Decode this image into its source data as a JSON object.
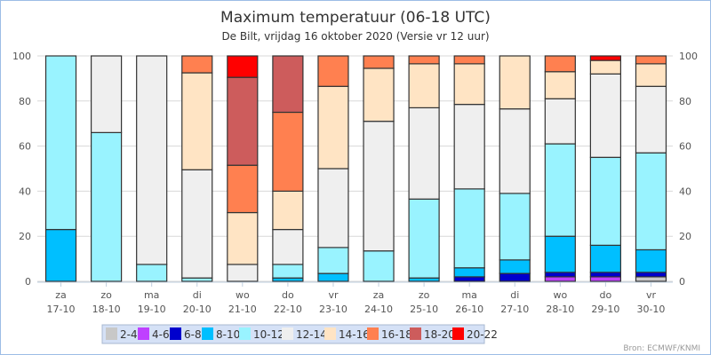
{
  "chart_data": {
    "type": "bar",
    "stacked": true,
    "title": "Maximum temperatuur (06-18 UTC)",
    "subtitle": "De Bilt, vrijdag 16 oktober 2020 (Versie vr 12 uur)",
    "source": "Bron: ECMWF/KNMI",
    "ylim": [
      0,
      100
    ],
    "yticks": [
      0,
      20,
      40,
      60,
      80,
      100
    ],
    "grid": true,
    "legend_position": "bottom",
    "categories": [
      [
        "za",
        "17-10"
      ],
      [
        "zo",
        "18-10"
      ],
      [
        "ma",
        "19-10"
      ],
      [
        "di",
        "20-10"
      ],
      [
        "wo",
        "21-10"
      ],
      [
        "do",
        "22-10"
      ],
      [
        "vr",
        "23-10"
      ],
      [
        "za",
        "24-10"
      ],
      [
        "zo",
        "25-10"
      ],
      [
        "ma",
        "26-10"
      ],
      [
        "di",
        "27-10"
      ],
      [
        "wo",
        "28-10"
      ],
      [
        "do",
        "29-10"
      ],
      [
        "vr",
        "30-10"
      ]
    ],
    "series": [
      {
        "name": "2-4",
        "color": "#c8c8c8",
        "values": [
          0,
          0,
          0,
          0,
          0,
          0,
          0,
          0,
          0,
          0,
          0,
          0,
          0,
          2
        ]
      },
      {
        "name": "4-6",
        "color": "#bf40ff",
        "values": [
          0,
          0,
          0,
          0,
          0,
          0,
          0,
          0,
          0,
          0,
          0,
          2,
          2,
          0
        ]
      },
      {
        "name": "6-8",
        "color": "#0000cd",
        "values": [
          0,
          0,
          0,
          0,
          0,
          0,
          0,
          0,
          0,
          2,
          3.5,
          2,
          2,
          2
        ]
      },
      {
        "name": "8-10",
        "color": "#00bfff",
        "values": [
          23,
          0,
          0,
          0,
          0,
          1.5,
          3.5,
          0,
          1.5,
          4,
          6,
          16,
          12,
          10
        ]
      },
      {
        "name": "10-12",
        "color": "#99f3ff",
        "values": [
          77,
          66,
          7.5,
          1.5,
          0,
          6,
          11.5,
          13.5,
          35,
          35,
          29.5,
          41,
          39,
          43
        ]
      },
      {
        "name": "12-14",
        "color": "#efefef",
        "values": [
          0,
          34,
          92.5,
          48,
          7.5,
          15.5,
          35,
          57.5,
          40.5,
          37.5,
          37.5,
          20,
          37,
          29.5
        ]
      },
      {
        "name": "14-16",
        "color": "#ffe4c4",
        "values": [
          0,
          0,
          0,
          43,
          23,
          17,
          36.5,
          23.5,
          19.5,
          18,
          23.5,
          12,
          6,
          10
        ]
      },
      {
        "name": "16-18",
        "color": "#ff8050",
        "values": [
          0,
          0,
          0,
          7.5,
          21,
          35,
          13.5,
          5.5,
          3.5,
          3.5,
          0,
          7,
          0,
          3.5
        ]
      },
      {
        "name": "18-20",
        "color": "#cd5c5c",
        "values": [
          0,
          0,
          0,
          0,
          39,
          25,
          0,
          0,
          0,
          0,
          0,
          0,
          0,
          0
        ]
      },
      {
        "name": "20-22",
        "color": "#ff0000",
        "values": [
          0,
          0,
          0,
          0,
          9.5,
          0,
          0,
          0,
          0,
          0,
          0,
          0,
          2,
          0
        ]
      }
    ]
  }
}
